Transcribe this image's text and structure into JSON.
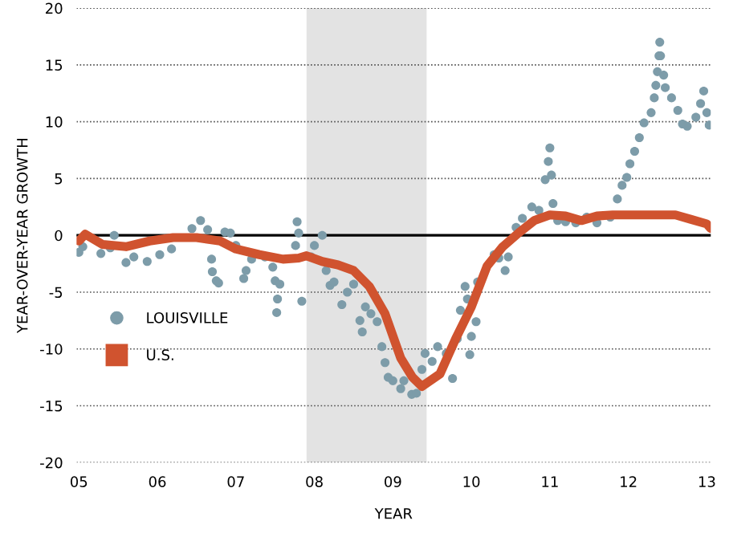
{
  "chart_data": {
    "type": "scatter",
    "xlabel": "YEAR",
    "ylabel": "YEAR-OVER-YEAR GROWTH",
    "xlim": [
      2004.97,
      2013.05
    ],
    "ylim": [
      -20,
      20
    ],
    "xticks": [
      {
        "value": 2005,
        "label": "05"
      },
      {
        "value": 2006,
        "label": "06"
      },
      {
        "value": 2007,
        "label": "07"
      },
      {
        "value": 2008,
        "label": "08"
      },
      {
        "value": 2009,
        "label": "09"
      },
      {
        "value": 2010,
        "label": "10"
      },
      {
        "value": 2011,
        "label": "11"
      },
      {
        "value": 2012,
        "label": "12"
      },
      {
        "value": 2013,
        "label": "13"
      }
    ],
    "yticks": [
      -20,
      -15,
      -10,
      -5,
      0,
      5,
      10,
      15,
      20
    ],
    "grid": "y",
    "legend": "left",
    "bands": [
      {
        "axis": "x",
        "from": 2007.9,
        "to": 2009.43,
        "color": "#e3e3e3"
      }
    ],
    "ref_lines": [
      {
        "axis": "y",
        "value": 0,
        "color": "#000000",
        "line_style": "solid"
      }
    ],
    "series": [
      {
        "name": "LOUISVILLE",
        "marker": "circle",
        "color": "#7d9ca9",
        "x": [
          2005.0,
          2005.05,
          2005.28,
          2005.4,
          2005.45,
          2005.6,
          2005.7,
          2005.87,
          2006.03,
          2006.18,
          2006.44,
          2006.55,
          2006.64,
          2006.69,
          2006.7,
          2006.75,
          2006.78,
          2006.86,
          2006.93,
          2007.0,
          2007.1,
          2007.13,
          2007.2,
          2007.37,
          2007.47,
          2007.5,
          2007.53,
          2007.52,
          2007.56,
          2007.76,
          2007.78,
          2007.8,
          2007.84,
          2007.96,
          2008.0,
          2008.1,
          2008.15,
          2008.2,
          2008.25,
          2008.35,
          2008.42,
          2008.5,
          2008.58,
          2008.61,
          2008.65,
          2008.72,
          2008.8,
          2008.86,
          2008.9,
          2008.94,
          2009.0,
          2009.1,
          2009.14,
          2009.24,
          2009.3,
          2009.37,
          2009.41,
          2009.5,
          2009.57,
          2009.68,
          2009.76,
          2009.82,
          2009.86,
          2009.92,
          2009.95,
          2009.98,
          2010.0,
          2010.06,
          2010.08,
          2010.29,
          2010.35,
          2010.43,
          2010.47,
          2010.57,
          2010.65,
          2010.77,
          2010.86,
          2010.94,
          2010.98,
          2011.0,
          2011.02,
          2011.04,
          2011.1,
          2011.2,
          2011.33,
          2011.47,
          2011.6,
          2011.77,
          2011.86,
          2011.92,
          2011.98,
          2012.02,
          2012.08,
          2012.14,
          2012.2,
          2012.29,
          2012.33,
          2012.35,
          2012.37,
          2012.39,
          2012.4,
          2012.41,
          2012.45,
          2012.47,
          2012.55,
          2012.63,
          2012.69,
          2012.75,
          2012.86,
          2012.92,
          2012.96,
          2013.0,
          2013.03
        ],
        "values": [
          -1.5,
          -1.0,
          -1.6,
          -1.1,
          0.0,
          -2.4,
          -1.9,
          -2.3,
          -1.7,
          -1.2,
          0.6,
          1.3,
          0.5,
          -2.1,
          -3.2,
          -4.0,
          -4.2,
          0.3,
          0.2,
          -0.9,
          -3.8,
          -3.1,
          -2.1,
          -1.9,
          -2.8,
          -4.0,
          -5.6,
          -6.8,
          -4.3,
          -0.9,
          1.2,
          0.2,
          -5.8,
          -1.9,
          -0.9,
          0.0,
          -3.1,
          -4.4,
          -4.1,
          -6.1,
          -5.0,
          -4.3,
          -7.5,
          -8.5,
          -6.3,
          -6.9,
          -7.6,
          -9.8,
          -11.2,
          -12.5,
          -12.8,
          -13.5,
          -12.8,
          -14.0,
          -13.9,
          -11.8,
          -10.4,
          -11.1,
          -9.8,
          -10.4,
          -12.6,
          -9.1,
          -6.6,
          -4.5,
          -5.6,
          -10.5,
          -8.9,
          -7.6,
          -4.1,
          -1.7,
          -2.0,
          -3.1,
          -1.9,
          0.7,
          1.5,
          2.5,
          2.2,
          4.9,
          6.5,
          7.7,
          5.3,
          2.8,
          1.3,
          1.2,
          1.1,
          1.6,
          1.1,
          1.6,
          3.2,
          4.4,
          5.1,
          6.3,
          7.4,
          8.6,
          9.9,
          10.8,
          12.1,
          13.2,
          14.4,
          15.8,
          17.0,
          15.8,
          14.1,
          13.0,
          12.1,
          11.0,
          9.8,
          9.6,
          10.4,
          11.6,
          12.7,
          10.8,
          9.7
        ]
      },
      {
        "name": "U.S.",
        "type": "line",
        "marker": "none",
        "line_style": "solid",
        "color": "#d0532f",
        "x": [
          2005.0,
          2005.08,
          2005.3,
          2005.6,
          2005.9,
          2006.2,
          2006.5,
          2006.8,
          2007.0,
          2007.3,
          2007.6,
          2007.8,
          2007.9,
          2008.1,
          2008.3,
          2008.5,
          2008.7,
          2008.9,
          2009.1,
          2009.25,
          2009.37,
          2009.6,
          2009.8,
          2010.0,
          2010.2,
          2010.4,
          2010.6,
          2010.8,
          2011.0,
          2011.2,
          2011.4,
          2011.6,
          2011.8,
          2012.0,
          2012.3,
          2012.6,
          2012.8,
          2013.0,
          2013.05
        ],
        "values": [
          -0.5,
          0.1,
          -0.8,
          -1.0,
          -0.5,
          -0.2,
          -0.2,
          -0.5,
          -1.2,
          -1.7,
          -2.1,
          -2.0,
          -1.8,
          -2.3,
          -2.6,
          -3.1,
          -4.5,
          -6.9,
          -10.8,
          -12.5,
          -13.3,
          -12.2,
          -9.1,
          -6.3,
          -2.7,
          -1.0,
          0.2,
          1.3,
          1.8,
          1.7,
          1.3,
          1.7,
          1.8,
          1.8,
          1.8,
          1.8,
          1.4,
          1.0,
          0.6
        ]
      }
    ]
  }
}
